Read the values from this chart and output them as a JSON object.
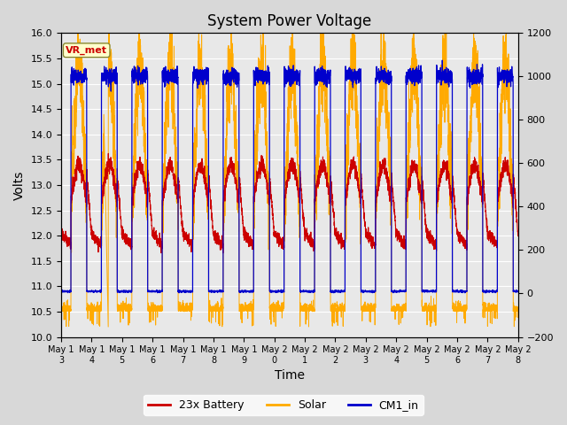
{
  "title": "System Power Voltage",
  "xlabel": "Time",
  "ylabel_left": "Volts",
  "ylim_left": [
    10.0,
    16.0
  ],
  "ylim_right": [
    -200,
    1200
  ],
  "yticks_left": [
    10.0,
    10.5,
    11.0,
    11.5,
    12.0,
    12.5,
    13.0,
    13.5,
    14.0,
    14.5,
    15.0,
    15.5,
    16.0
  ],
  "yticks_right": [
    -200,
    0,
    200,
    400,
    600,
    800,
    1000,
    1200
  ],
  "xtick_labels": [
    "May 13",
    "May 14",
    "May 15",
    "May 16",
    "May 17",
    "May 18",
    "May 19",
    "May 20",
    "May 21",
    "May 22",
    "May 23",
    "May 24",
    "May 25",
    "May 26",
    "May 27",
    "May 28"
  ],
  "color_battery": "#cc0000",
  "color_solar": "#ffaa00",
  "color_cm1": "#0000cc",
  "legend_labels": [
    "23x Battery",
    "Solar",
    "CM1_in"
  ],
  "annotation_text": "VR_met",
  "annotation_color": "#cc0000",
  "annotation_bg": "#ffffcc",
  "fig_bg": "#d8d8d8",
  "plot_bg": "#e8e8e8",
  "n_days": 15,
  "pts_per_day": 288
}
